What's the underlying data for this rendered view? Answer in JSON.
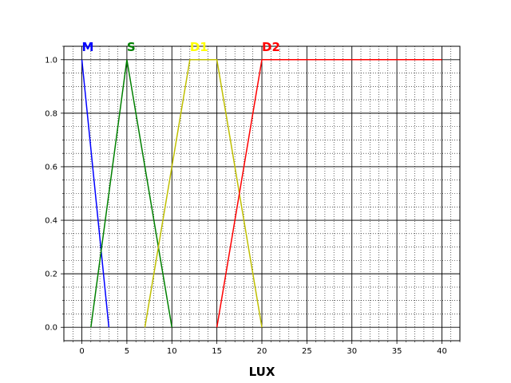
{
  "chart_data": {
    "type": "line",
    "title": "",
    "xlabel": "LUX",
    "ylabel": "",
    "xlim": [
      -2,
      42
    ],
    "ylim": [
      -0.05,
      1.05
    ],
    "x_ticks": [
      0,
      5,
      10,
      15,
      20,
      25,
      30,
      35,
      40
    ],
    "y_ticks": [
      0.0,
      0.2,
      0.4,
      0.6,
      0.8,
      1.0
    ],
    "x_tick_labels": [
      "0",
      "5",
      "10",
      "15",
      "20",
      "25",
      "30",
      "35",
      "40"
    ],
    "y_tick_labels": [
      "0.0",
      "0.2",
      "0.4",
      "0.6",
      "0.8",
      "1.0"
    ],
    "grid": {
      "major": true,
      "minor": true,
      "major_style": "solid",
      "minor_style": "dotted"
    },
    "legend": "none",
    "series": [
      {
        "name": "M",
        "color": "#0000ff",
        "label_x": 0,
        "x": [
          0,
          3
        ],
        "y": [
          1.0,
          0.0
        ]
      },
      {
        "name": "S",
        "color": "#008000",
        "label_x": 5,
        "x": [
          1,
          5,
          10
        ],
        "y": [
          0.0,
          1.0,
          0.0
        ]
      },
      {
        "name": "D1",
        "color": "#ffff00",
        "line_color": "#bfbf00",
        "label_x": 12,
        "x": [
          7,
          12,
          15,
          20
        ],
        "y": [
          0.0,
          1.0,
          1.0,
          0.0
        ]
      },
      {
        "name": "D2",
        "color": "#ff0000",
        "label_x": 20,
        "x": [
          15,
          20,
          40
        ],
        "y": [
          0.0,
          1.0,
          1.0
        ]
      }
    ]
  }
}
